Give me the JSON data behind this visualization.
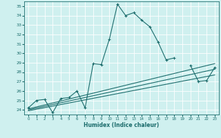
{
  "xlabel": "Humidex (Indice chaleur)",
  "ylabel": "",
  "xlim": [
    -0.5,
    23.5
  ],
  "ylim": [
    23.5,
    35.5
  ],
  "xticks": [
    0,
    1,
    2,
    3,
    4,
    5,
    6,
    7,
    8,
    9,
    10,
    11,
    12,
    13,
    14,
    15,
    16,
    17,
    18,
    19,
    20,
    21,
    22,
    23
  ],
  "yticks": [
    24,
    25,
    26,
    27,
    28,
    29,
    30,
    31,
    32,
    33,
    34,
    35
  ],
  "bg_color": "#cff0ef",
  "line_color": "#1a6b6b",
  "grid_color": "#ffffff",
  "series": [
    {
      "x": [
        0,
        1,
        2,
        3,
        4,
        5,
        6,
        7,
        8,
        9,
        10,
        11,
        12,
        13,
        14,
        15,
        16,
        17,
        18,
        19,
        20,
        21,
        22,
        23
      ],
      "y": [
        24.2,
        25.0,
        25.1,
        23.7,
        25.2,
        25.3,
        26.0,
        24.2,
        28.9,
        28.8,
        31.5,
        35.2,
        34.0,
        34.3,
        33.5,
        32.8,
        31.2,
        29.3,
        29.5,
        null,
        28.7,
        27.0,
        27.1,
        28.5
      ],
      "marker": true
    },
    {
      "x": [
        0,
        23
      ],
      "y": [
        24.1,
        28.9
      ],
      "marker": false
    },
    {
      "x": [
        0,
        23
      ],
      "y": [
        24.0,
        28.3
      ],
      "marker": false
    },
    {
      "x": [
        0,
        23
      ],
      "y": [
        23.9,
        27.7
      ],
      "marker": false
    }
  ]
}
